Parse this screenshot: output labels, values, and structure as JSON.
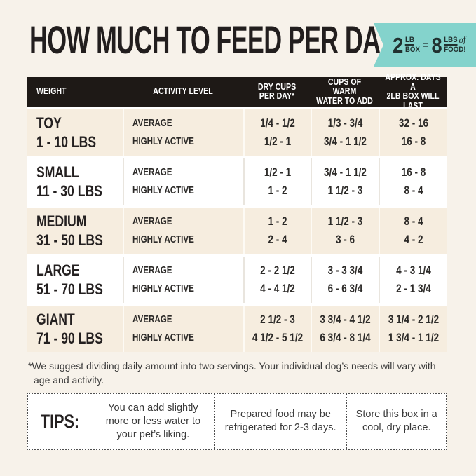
{
  "colors": {
    "page_bg": "#f7f2ea",
    "badge_bg": "#84d3cc",
    "badge_text": "#20302f",
    "header_bg": "#1e1916",
    "row_cream": "#f6eddf"
  },
  "header": {
    "title": "HOW MUCH TO FEED PER DAY",
    "badge": {
      "qty": "2",
      "unit_top": "LB",
      "unit_bottom": "BOX",
      "eq": "=",
      "amount": "8",
      "amount_top": "LBS",
      "of": "of",
      "amount_bottom": "FOOD!"
    }
  },
  "table": {
    "columns": [
      {
        "l1": "WEIGHT",
        "l2": ""
      },
      {
        "l1": "ACTIVITY LEVEL",
        "l2": ""
      },
      {
        "l1": "DRY CUPS",
        "l2": "PER DAY*"
      },
      {
        "l1": "CUPS OF WARM",
        "l2": "WATER TO ADD"
      },
      {
        "l1": "APPROX. DAYS A",
        "l2": "2LB BOX WILL LAST"
      }
    ],
    "activity": [
      "AVERAGE",
      "HIGHLY ACTIVE"
    ],
    "rows": [
      {
        "name": "TOY",
        "range": "1 - 10 LBS",
        "avg": [
          "1/4 - 1/2",
          "1/3 - 3/4",
          "32 - 16"
        ],
        "act": [
          "1/2 - 1",
          "3/4 - 1 1/2",
          "16 - 8"
        ]
      },
      {
        "name": "SMALL",
        "range": "11 - 30 LBS",
        "avg": [
          "1/2 - 1",
          "3/4 - 1 1/2",
          "16 - 8"
        ],
        "act": [
          "1 - 2",
          "1 1/2 - 3",
          "8 - 4"
        ]
      },
      {
        "name": "MEDIUM",
        "range": "31 - 50 LBS",
        "avg": [
          "1 - 2",
          "1 1/2 - 3",
          "8 - 4"
        ],
        "act": [
          "2 - 4",
          "3 - 6",
          "4 - 2"
        ]
      },
      {
        "name": "LARGE",
        "range": "51 - 70 LBS",
        "avg": [
          "2 - 2 1/2",
          "3 - 3 3/4",
          "4 - 3 1/4"
        ],
        "act": [
          "4 - 4 1/2",
          "6 - 6 3/4",
          "2 - 1 3/4"
        ]
      },
      {
        "name": "GIANT",
        "range": "71 - 90 LBS",
        "avg": [
          "2 1/2 - 3",
          "3 3/4 - 4 1/2",
          "3 1/4 - 2 1/2"
        ],
        "act": [
          "4 1/2 - 5 1/2",
          "6 3/4 - 8 1/4",
          "1 3/4 - 1 1/2"
        ]
      }
    ]
  },
  "footnote": "*We suggest dividing daily amount into two servings. Your individual dog’s needs will vary with age and activity.",
  "tips": {
    "label": "TIPS:",
    "items": [
      "You can add slightly more or less water to your pet’s liking.",
      "Prepared food may be refrigerated for 2-3 days.",
      "Store this box in a cool, dry place."
    ]
  }
}
